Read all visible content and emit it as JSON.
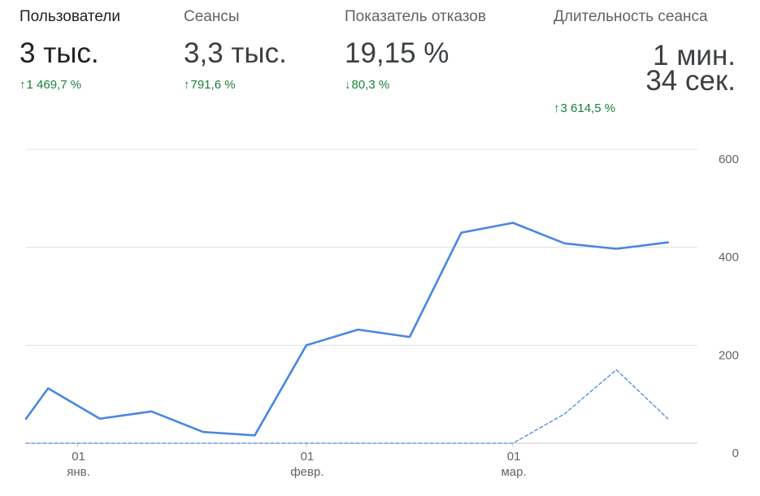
{
  "metrics": [
    {
      "label": "Пользователи",
      "value": "3 тыс.",
      "change": "1 469,7 %",
      "direction": "up"
    },
    {
      "label": "Сеансы",
      "value": "3,3 тыс.",
      "change": "791,6 %",
      "direction": "up"
    },
    {
      "label": "Показатель отказов",
      "value": "19,15 %",
      "change": "80,3 %",
      "direction": "down"
    },
    {
      "label": "Длительность сеанса",
      "value_line1": "1 мин.",
      "value_line2": "34 сек.",
      "change": "3 614,5 %",
      "direction": "up"
    }
  ],
  "icons": {
    "up": "arrow-up-icon",
    "down": "arrow-down-icon"
  },
  "colors": {
    "current_series": "#4a86e0",
    "previous_series": "#4a86e0",
    "positive_change": "#188038",
    "grid": "#e0e0e0"
  },
  "chart_data": {
    "type": "line",
    "grid": true,
    "y_axis_position": "right",
    "ylim": [
      0,
      600
    ],
    "y_ticks": [
      0,
      200,
      400,
      600
    ],
    "x_range": [
      "2018-12-25",
      "2019-03-26"
    ],
    "x_ticks": [
      {
        "date": "2019-01-01",
        "day": "01",
        "month": "янв."
      },
      {
        "date": "2019-02-01",
        "day": "01",
        "month": "февр."
      },
      {
        "date": "2019-03-01",
        "day": "01",
        "month": "мар."
      }
    ],
    "series": [
      {
        "style": "solid",
        "points": [
          {
            "x": "2018-12-25",
            "y": 50
          },
          {
            "x": "2018-12-28",
            "y": 112
          },
          {
            "x": "2019-01-04",
            "y": 50
          },
          {
            "x": "2019-01-11",
            "y": 65
          },
          {
            "x": "2019-01-18",
            "y": 23
          },
          {
            "x": "2019-01-25",
            "y": 16
          },
          {
            "x": "2019-02-01",
            "y": 200
          },
          {
            "x": "2019-02-08",
            "y": 232
          },
          {
            "x": "2019-02-15",
            "y": 217
          },
          {
            "x": "2019-02-22",
            "y": 430
          },
          {
            "x": "2019-03-01",
            "y": 450
          },
          {
            "x": "2019-03-08",
            "y": 408
          },
          {
            "x": "2019-03-15",
            "y": 397
          },
          {
            "x": "2019-03-22",
            "y": 410
          }
        ]
      },
      {
        "style": "dashed",
        "points": [
          {
            "x": "2018-12-25",
            "y": 0
          },
          {
            "x": "2019-03-01",
            "y": 0
          },
          {
            "x": "2019-03-08",
            "y": 60
          },
          {
            "x": "2019-03-15",
            "y": 150
          },
          {
            "x": "2019-03-22",
            "y": 50
          }
        ]
      }
    ]
  }
}
